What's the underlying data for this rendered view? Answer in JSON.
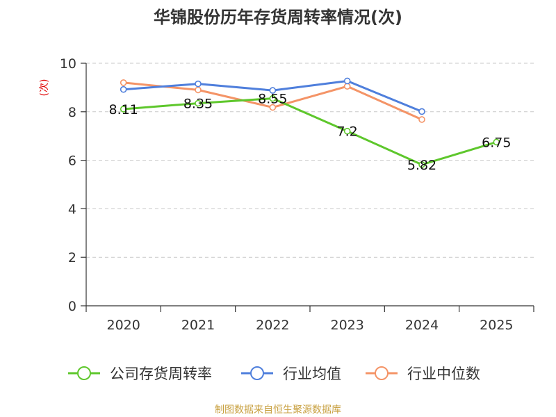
{
  "chart_data": {
    "type": "line",
    "title": "华锦股份历年存货周转率情况(次)",
    "ylabel": "(次)",
    "xlabel": "",
    "categories": [
      "2020",
      "2021",
      "2022",
      "2023",
      "2024",
      "2025"
    ],
    "ylim": [
      0,
      10
    ],
    "yticks": [
      0,
      2,
      4,
      6,
      8,
      10
    ],
    "grid": true,
    "legend_position": "bottom",
    "series": [
      {
        "name": "公司存货周转率",
        "color": "#5ec72c",
        "values": [
          8.11,
          8.35,
          8.55,
          7.2,
          5.82,
          6.75
        ],
        "data_labels": [
          "8.11",
          "8.35",
          "8.55",
          "7.2",
          "5.82",
          "6.75"
        ]
      },
      {
        "name": "行业均值",
        "color": "#4f7fdc",
        "values": [
          8.92,
          9.15,
          8.88,
          9.27,
          8.01,
          null
        ],
        "data_labels": []
      },
      {
        "name": "行业中位数",
        "color": "#f49467",
        "values": [
          9.2,
          8.9,
          8.18,
          9.05,
          7.68,
          null
        ],
        "data_labels": []
      }
    ]
  },
  "source": "制图数据来自恒生聚源数据库"
}
